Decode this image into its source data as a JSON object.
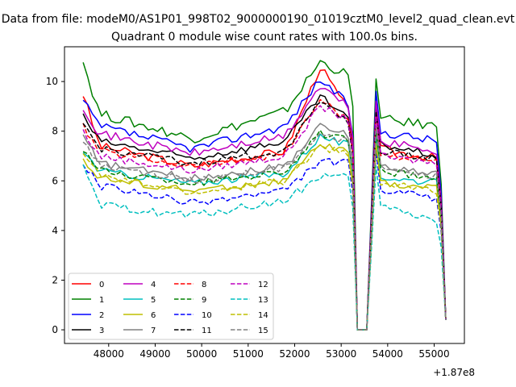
{
  "chart_data": {
    "type": "line",
    "suptitle": "Data from file: modeM0/AS1P01_998T02_9000000190_01019cztM0_level2_quad_clean.evt",
    "title": "Quadrant 0 module wise count rates with 100.0s bins.",
    "xlabel": "",
    "ylabel": "",
    "x_offset_label": "+1.87e8",
    "xlim": [
      47050,
      55650
    ],
    "ylim": [
      -0.55,
      11.4
    ],
    "xticks": [
      48000,
      49000,
      50000,
      51000,
      52000,
      53000,
      54000,
      55000
    ],
    "xtick_labels": [
      "48000",
      "49000",
      "50000",
      "51000",
      "52000",
      "53000",
      "54000",
      "55000"
    ],
    "yticks": [
      0,
      2,
      4,
      6,
      8,
      10
    ],
    "ytick_labels": [
      "0",
      "2",
      "4",
      "6",
      "8",
      "10"
    ],
    "legend_position": "lower-left",
    "legend_columns": 4,
    "bin_seconds": 100,
    "x_start": 47450,
    "gap_x_range": [
      53400,
      53550
    ],
    "series": [
      {
        "name": "0",
        "color": "#ff0000",
        "dash": "solid",
        "start": 9.5,
        "lvl1": 7.4,
        "lvl2": 6.6,
        "lvl3": 7.2,
        "peak": 10.6,
        "pre": 8.7,
        "seg2": 7.3,
        "end": 6.9,
        "noise": 0.35
      },
      {
        "name": "1",
        "color": "#008000",
        "dash": "solid",
        "start": 10.8,
        "lvl1": 8.7,
        "lvl2": 7.7,
        "lvl3": 8.8,
        "peak": 10.8,
        "pre": 10.2,
        "seg2": 8.5,
        "end": 8.2,
        "noise": 0.4
      },
      {
        "name": "2",
        "color": "#0000ff",
        "dash": "solid",
        "start": 9.2,
        "lvl1": 8.2,
        "lvl2": 7.3,
        "lvl3": 8.2,
        "peak": 10.1,
        "pre": 9.0,
        "seg2": 8.0,
        "end": 7.6,
        "noise": 0.35
      },
      {
        "name": "3",
        "color": "#000000",
        "dash": "solid",
        "start": 8.6,
        "lvl1": 7.6,
        "lvl2": 6.9,
        "lvl3": 7.6,
        "peak": 9.4,
        "pre": 8.4,
        "seg2": 7.5,
        "end": 7.0,
        "noise": 0.3
      },
      {
        "name": "4",
        "color": "#bf00bf",
        "dash": "solid",
        "start": 9.0,
        "lvl1": 7.9,
        "lvl2": 7.1,
        "lvl3": 7.8,
        "peak": 9.8,
        "pre": 8.9,
        "seg2": 7.6,
        "end": 7.2,
        "noise": 0.35
      },
      {
        "name": "5",
        "color": "#00bfbf",
        "dash": "solid",
        "start": 7.2,
        "lvl1": 6.4,
        "lvl2": 5.9,
        "lvl3": 6.3,
        "peak": 7.8,
        "pre": 7.4,
        "seg2": 6.2,
        "end": 5.9,
        "noise": 0.3
      },
      {
        "name": "6",
        "color": "#bfbf00",
        "dash": "solid",
        "start": 6.9,
        "lvl1": 6.1,
        "lvl2": 5.6,
        "lvl3": 6.0,
        "peak": 7.5,
        "pre": 7.1,
        "seg2": 5.9,
        "end": 5.7,
        "noise": 0.3
      },
      {
        "name": "7",
        "color": "#808080",
        "dash": "solid",
        "start": 7.8,
        "lvl1": 6.7,
        "lvl2": 6.1,
        "lvl3": 6.6,
        "peak": 8.2,
        "pre": 7.8,
        "seg2": 6.6,
        "end": 6.3,
        "noise": 0.3
      },
      {
        "name": "8",
        "color": "#ff0000",
        "dash": "dashed",
        "start": 8.2,
        "lvl1": 7.2,
        "lvl2": 6.6,
        "lvl3": 7.1,
        "peak": 9.3,
        "pre": 8.3,
        "seg2": 7.1,
        "end": 6.8,
        "noise": 0.3
      },
      {
        "name": "9",
        "color": "#008000",
        "dash": "dashed",
        "start": 7.3,
        "lvl1": 6.4,
        "lvl2": 5.9,
        "lvl3": 6.4,
        "peak": 7.9,
        "pre": 7.6,
        "seg2": 6.4,
        "end": 6.1,
        "noise": 0.3
      },
      {
        "name": "10",
        "color": "#0000ff",
        "dash": "dashed",
        "start": 6.7,
        "lvl1": 5.8,
        "lvl2": 5.1,
        "lvl3": 5.6,
        "peak": 6.8,
        "pre": 6.7,
        "seg2": 5.6,
        "end": 5.3,
        "noise": 0.3
      },
      {
        "name": "11",
        "color": "#000000",
        "dash": "dashed",
        "start": 8.3,
        "lvl1": 7.3,
        "lvl2": 6.7,
        "lvl3": 7.2,
        "peak": 9.3,
        "pre": 8.2,
        "seg2": 7.2,
        "end": 6.9,
        "noise": 0.3
      },
      {
        "name": "12",
        "color": "#bf00bf",
        "dash": "dashed",
        "start": 8.0,
        "lvl1": 7.0,
        "lvl2": 6.4,
        "lvl3": 7.0,
        "peak": 9.0,
        "pre": 8.4,
        "seg2": 7.0,
        "end": 6.7,
        "noise": 0.3
      },
      {
        "name": "13",
        "color": "#00bfbf",
        "dash": "dashed",
        "start": 6.5,
        "lvl1": 5.0,
        "lvl2": 4.6,
        "lvl3": 5.2,
        "peak": 6.2,
        "pre": 6.1,
        "seg2": 5.0,
        "end": 4.4,
        "noise": 0.35
      },
      {
        "name": "14",
        "color": "#bfbf00",
        "dash": "dashed",
        "start": 7.2,
        "lvl1": 6.2,
        "lvl2": 5.5,
        "lvl3": 6.0,
        "peak": 7.4,
        "pre": 7.0,
        "seg2": 5.9,
        "end": 5.6,
        "noise": 0.3
      },
      {
        "name": "15",
        "color": "#808080",
        "dash": "dashed",
        "start": 7.6,
        "lvl1": 6.6,
        "lvl2": 6.0,
        "lvl3": 6.5,
        "peak": 8.0,
        "pre": 7.5,
        "seg2": 6.5,
        "end": 6.2,
        "noise": 0.3
      }
    ]
  }
}
